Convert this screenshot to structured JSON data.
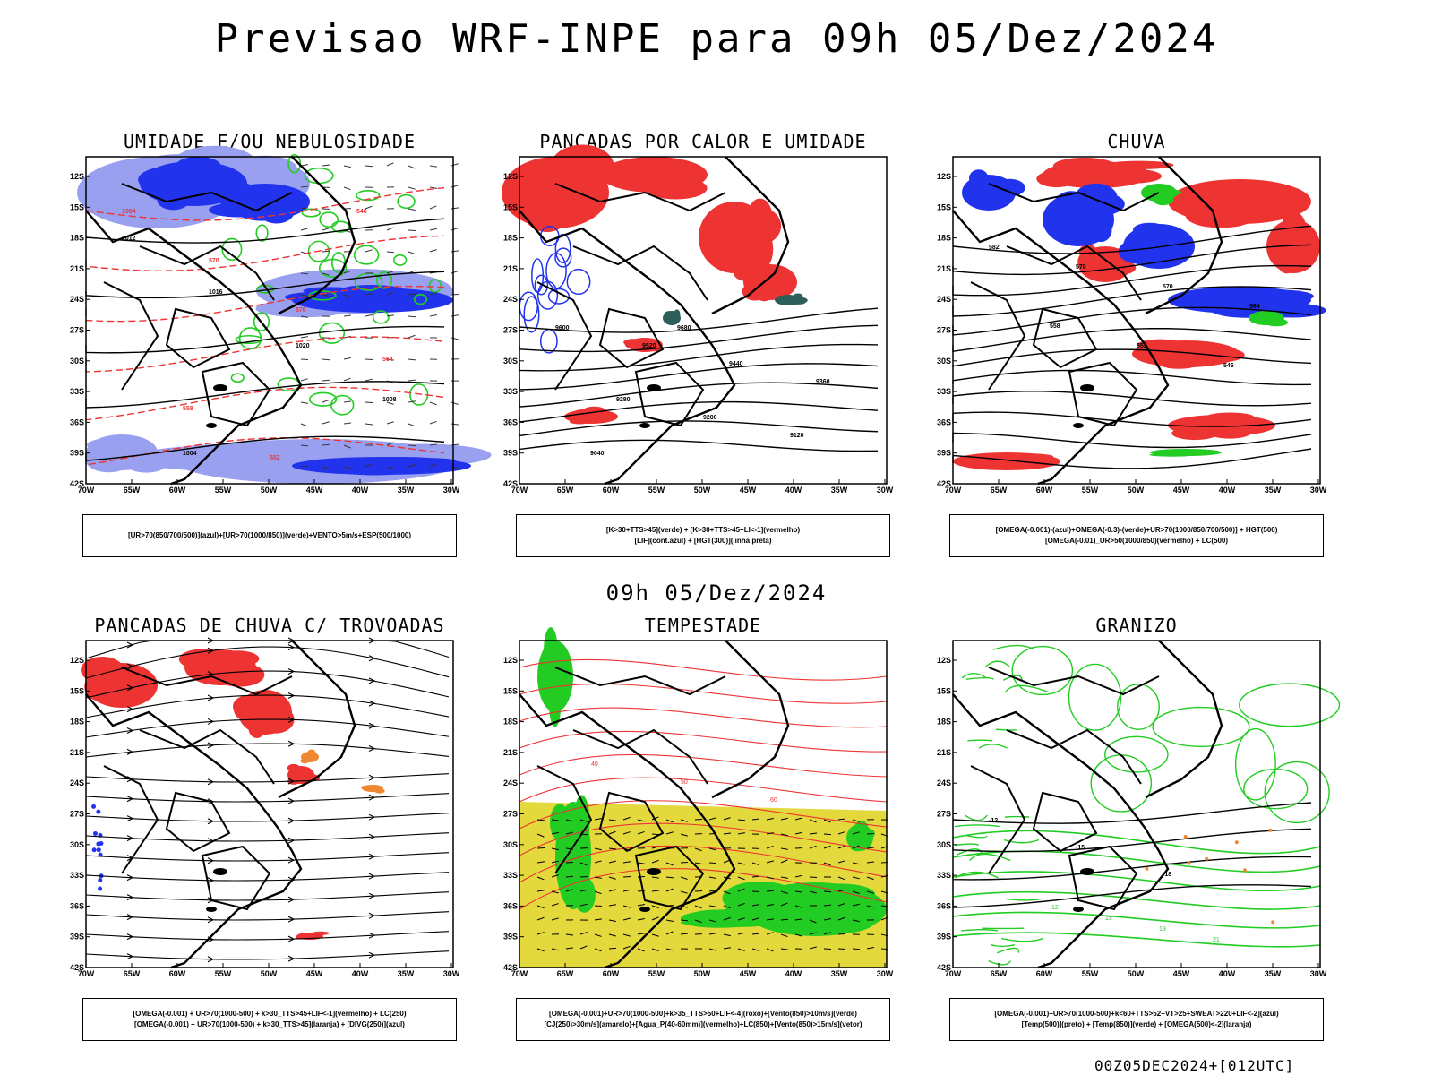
{
  "title": "Previsao WRF-INPE  para 09h 05/Dez/2024",
  "mid_date": "09h 05/Dez/2024",
  "footer": "00Z05DEC2024+[012UTC]",
  "axes": {
    "lat_ticks": [
      "12S",
      "15S",
      "18S",
      "21S",
      "24S",
      "27S",
      "30S",
      "33S",
      "36S",
      "39S",
      "42S"
    ],
    "lon_ticks": [
      "70W",
      "65W",
      "60W",
      "55W",
      "50W",
      "45W",
      "40W",
      "35W",
      "30W"
    ]
  },
  "panels": [
    {
      "id": "umidade",
      "title": "UMIDADE E/OU NEBULOSIDADE",
      "legend": [
        "[UR>70(850/700/500)](azul)+[UR>70(1000/850)](verde)+VENTO>5m/s+ESP(500/1000)"
      ],
      "contour_labels": [
        "1012",
        "1016",
        "1020",
        "1008",
        "1004",
        "570",
        "576",
        "564",
        "558",
        "552",
        "546"
      ]
    },
    {
      "id": "pancadas",
      "title": "PANCADAS POR CALOR E UMIDADE",
      "legend": [
        "[K>30+TTS>45](verde) + [K>30+TTS>45+LI<-1](vermelho)",
        "[LIF](cont.azul) + [HGT(300)](linha preta)"
      ],
      "contour_labels": [
        "9600",
        "9520",
        "9440",
        "9360",
        "9280",
        "9200",
        "9120",
        "9040",
        "9680"
      ]
    },
    {
      "id": "chuva",
      "title": "CHUVA",
      "legend": [
        "[OMEGA(-0.001)-(azul)+OMEGA(-0.3)-(verde)+UR>70(1000/850/700/500)] + HGT(500)",
        "[OMEGA(-0.01)_UR>50(1000/850)(vermelho) + LC(500)"
      ],
      "contour_labels": [
        "582",
        "576",
        "570",
        "564",
        "558",
        "552",
        "546"
      ]
    },
    {
      "id": "trovoadas",
      "title": "PANCADAS DE CHUVA C/ TROVOADAS",
      "legend": [
        "[OMEGA(-0.001) + UR>70(1000-500) + k>30_TTS>45+LIF<-1](vermelho) + LC(250)",
        "[OMEGA(-0.001) + UR>70(1000-500) + k>30_TTS>45](laranja) + [DIVG(250)](azul)"
      ],
      "contour_labels": []
    },
    {
      "id": "tempestade",
      "title": "TEMPESTADE",
      "legend": [
        "[OMEGA(-0.001)+UR>70(1000-500)+k>35_TTS>50+LIF<-4](roxo)+[Vento(850)>10m/s](verde)",
        "[CJ(250)>30m/s](amarelo)+[Agua_P(40-60mm)](vermelho)+LC(850)+[Vento(850)>15m/s](vetor)"
      ],
      "contour_labels": [
        "40",
        "50",
        "60"
      ]
    },
    {
      "id": "granizo",
      "title": "GRANIZO",
      "legend": [
        "[OMEGA(-0.001)+UR>70(1000-500)+k<60+TTS>52+VT>25+SWEAT>220+LIF<-2](azul)",
        "[Temp(500)](preto) + [Temp(850)](verde) + [OMEGA(500)<-2](laranja)"
      ],
      "contour_labels": [
        "-12",
        "-15",
        "-18",
        "12",
        "15",
        "18",
        "21"
      ]
    }
  ],
  "colors": {
    "blue": "#2233ee",
    "lightblue": "#9aa0f0",
    "green": "#22cc22",
    "red": "#ee3333",
    "orange": "#ee8833",
    "yellow": "#e4d93c",
    "teal": "#2e5e5a",
    "black": "#000000"
  }
}
